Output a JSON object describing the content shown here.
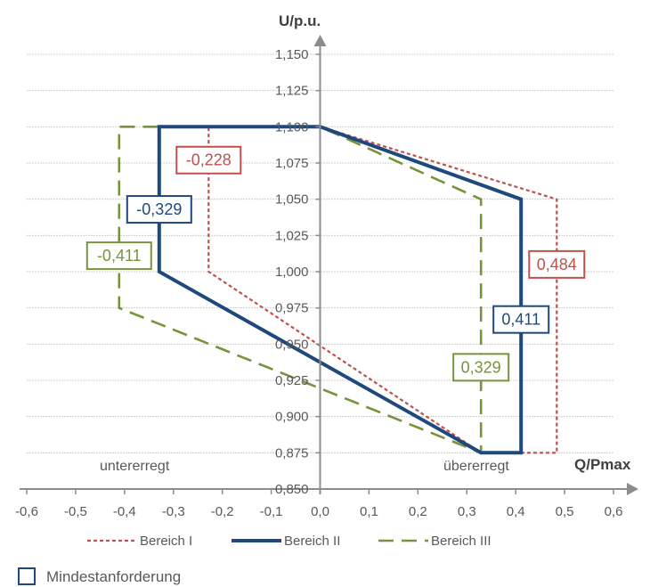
{
  "chart_data": {
    "type": "line",
    "xlabel": "Q/Pmax",
    "ylabel": "U/p.u.",
    "xlim": [
      -0.6,
      0.6
    ],
    "ylim": [
      0.85,
      1.15
    ],
    "x_ticks": [
      "-0,6",
      "-0,5",
      "-0,4",
      "-0,3",
      "-0,2",
      "-0,1",
      "0,0",
      "0,1",
      "0,2",
      "0,3",
      "0,4",
      "0,5",
      "0,6"
    ],
    "y_ticks": [
      "0,850",
      "0,875",
      "0,900",
      "0,925",
      "0,950",
      "0,975",
      "1,000",
      "1,025",
      "1,050",
      "1,075",
      "1,100",
      "1,125",
      "1,150"
    ],
    "grid": "horizontal",
    "legend_position": "bottom",
    "series": [
      {
        "name": "Bereich I",
        "color": "#c0504d",
        "style": "dotted",
        "points": [
          [
            0.0,
            1.1
          ],
          [
            -0.228,
            1.1
          ],
          [
            -0.228,
            1.0
          ],
          [
            0.329,
            0.875
          ],
          [
            0.484,
            0.875
          ],
          [
            0.484,
            1.05
          ],
          [
            0.0,
            1.1
          ]
        ]
      },
      {
        "name": "Bereich II",
        "color": "#1f497d",
        "style": "solid",
        "points": [
          [
            0.0,
            1.1
          ],
          [
            -0.329,
            1.1
          ],
          [
            -0.329,
            1.0
          ],
          [
            0.329,
            0.875
          ],
          [
            0.411,
            0.875
          ],
          [
            0.411,
            1.05
          ],
          [
            0.0,
            1.1
          ]
        ]
      },
      {
        "name": "Bereich III",
        "color": "#77933c",
        "style": "dashed",
        "points": [
          [
            0.0,
            1.1
          ],
          [
            -0.411,
            1.1
          ],
          [
            -0.411,
            0.975
          ],
          [
            0.329,
            0.875
          ],
          [
            0.329,
            1.05
          ],
          [
            0.0,
            1.1
          ]
        ]
      }
    ],
    "annotations": [
      {
        "text": "-0,228",
        "color": "#c0504d",
        "x": -0.228,
        "y": 1.077
      },
      {
        "text": "-0,329",
        "color": "#1f497d",
        "x": -0.329,
        "y": 1.043
      },
      {
        "text": "-0,411",
        "color": "#77933c",
        "x": -0.411,
        "y": 1.011
      },
      {
        "text": "0,484",
        "color": "#c0504d",
        "x": 0.484,
        "y": 1.005
      },
      {
        "text": "0,411",
        "color": "#1f497d",
        "x": 0.411,
        "y": 0.967
      },
      {
        "text": "0,329",
        "color": "#77933c",
        "x": 0.329,
        "y": 0.934
      }
    ],
    "region_labels": {
      "left": "untererregt",
      "right": "übererregt"
    }
  },
  "note": {
    "text": "Mindestanforderung",
    "box_color": "#1f497d"
  }
}
